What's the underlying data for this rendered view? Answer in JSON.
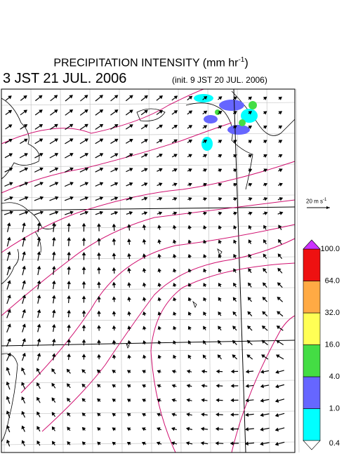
{
  "header": {
    "title": "PRECIPITATION INTENSITY (mm hr",
    "title_exponent": "-1",
    "title_close": ")",
    "valid_time": "3 JST 21 JUL. 2006",
    "init_time": "(init. 9 JST 20 JUL. 2006)"
  },
  "reference_vector": {
    "label": "20 m s",
    "exponent": "-1"
  },
  "legend": {
    "levels": [
      "0.4",
      "1.0",
      "4.0",
      "16.0",
      "32.0",
      "64.0",
      "100.0"
    ],
    "colors": [
      "#00ffff",
      "#6666ff",
      "#44dd44",
      "#ffff55",
      "#ffaa44",
      "#ee1111"
    ],
    "over_color": "#cc33ff",
    "under_color": "#ffffff"
  }
}
